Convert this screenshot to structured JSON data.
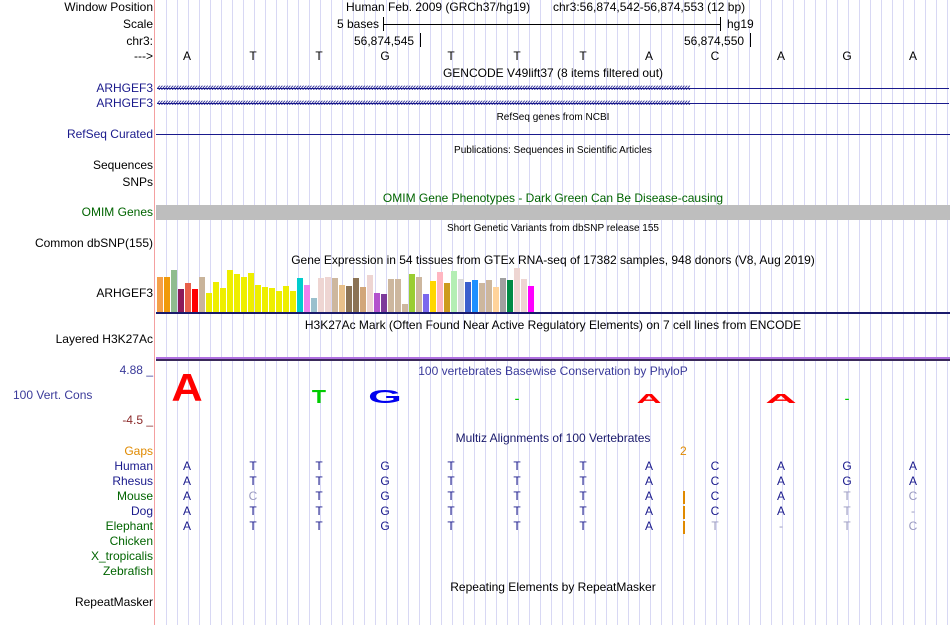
{
  "header": {
    "window_position_label": "Window Position",
    "scale_label": "Scale",
    "chrom_label": "chr3:",
    "strand_label": "--->",
    "assembly": "Human Feb. 2009 (GRCh37/hg19)",
    "position": "chr3:56,874,542-56,874,553 (12 bp)",
    "scale_text": "5 bases",
    "db": "hg19",
    "coord1": "56,874,545",
    "coord2": "56,874,550"
  },
  "sequence": [
    "A",
    "T",
    "T",
    "G",
    "T",
    "T",
    "T",
    "A",
    "C",
    "A",
    "G",
    "A"
  ],
  "tracks": {
    "gencode": {
      "title": "GENCODE V49lift37 (8 items filtered out)",
      "items": [
        "ARHGEF3",
        "ARHGEF3"
      ]
    },
    "refseq": {
      "title": "RefSeq genes from NCBI",
      "label": "RefSeq Curated"
    },
    "publications": {
      "title": "Publications: Sequences in Scientific Articles",
      "labels": [
        "Sequences",
        "SNPs"
      ]
    },
    "omim": {
      "title": "OMIM Gene Phenotypes - Dark Green Can Be Disease-causing",
      "label": "OMIM Genes"
    },
    "dbsnp": {
      "title": "Short Genetic Variants from dbSNP release 155",
      "label": "Common dbSNP(155)"
    },
    "gtex": {
      "title": "Gene Expression in 54 tissues from GTEx RNA-seq of 17382 samples, 948 donors (V8, Aug 2019)",
      "label": "ARHGEF3",
      "values": [
        35,
        35,
        42,
        23,
        29,
        23,
        35,
        19,
        30,
        24,
        42,
        38,
        35,
        39,
        27,
        25,
        24,
        21,
        26,
        21,
        34,
        27,
        14,
        34,
        35,
        34,
        27,
        26,
        34,
        25,
        37,
        19,
        18,
        33,
        33,
        8,
        38,
        35,
        18,
        31,
        40,
        29,
        41,
        33,
        30,
        32,
        29,
        32,
        25,
        34,
        32,
        44,
        33,
        26
      ],
      "colors": [
        "#f4a04a",
        "#f09a0a",
        "#8fbc8f",
        "#8b1a5a",
        "#e8604a",
        "#ff0000",
        "#c9b49a",
        "#eeee00",
        "#eeee00",
        "#eeee00",
        "#eeee00",
        "#eeee00",
        "#eeee00",
        "#eeee00",
        "#eeee00",
        "#eeee00",
        "#eeee00",
        "#eeee00",
        "#eeee00",
        "#eeee00",
        "#00cdcd",
        "#ee82ee",
        "#9bc0cd",
        "#eed5d2",
        "#eed5d2",
        "#cdb79e",
        "#e8c08a",
        "#8b7355",
        "#8b7355",
        "#d2a679",
        "#eed5d2",
        "#b452cd",
        "#7d3a9a",
        "#cdb79e",
        "#cdb79e",
        "#cdb79e",
        "#9acd32",
        "#cdb79e",
        "#7b68ee",
        "#ffd700",
        "#ffb6c1",
        "#cd9b1d",
        "#b4eeb4",
        "#d9d9d9",
        "#3a5fcd",
        "#1e90ff",
        "#cdb79e",
        "#cdb79e",
        "#ffd39b",
        "#a0a0a0",
        "#008b45",
        "#eed5d2",
        "#eed5d2",
        "#ff00ff"
      ]
    },
    "h3k27ac": {
      "title": "H3K27Ac Mark (Often Found Near Active Regulatory Elements) on 7 cell lines from ENCODE",
      "label": "Layered H3K27Ac"
    },
    "phylop": {
      "title": "100 vertebrates Basewise Conservation by PhyloP",
      "label": "100 Vert. Cons",
      "max": "4.88 _",
      "min": "-4.5 _"
    },
    "multiz": {
      "title": "Multiz Alignments of 100 Vertebrates",
      "gaps_label": "Gaps",
      "gap_count": "2",
      "species": [
        {
          "name": "Human",
          "bases": [
            "A",
            "T",
            "T",
            "G",
            "T",
            "T",
            "T",
            "A",
            "C",
            "A",
            "G",
            "A"
          ]
        },
        {
          "name": "Rhesus",
          "bases": [
            "A",
            "T",
            "T",
            "G",
            "T",
            "T",
            "T",
            "A",
            "C",
            "A",
            "G",
            "A"
          ]
        },
        {
          "name": "Mouse",
          "bases": [
            "A",
            "C",
            "T",
            "G",
            "T",
            "T",
            "T",
            "A",
            "C",
            "A",
            "T",
            "C"
          ]
        },
        {
          "name": "Dog",
          "bases": [
            "A",
            "T",
            "T",
            "G",
            "T",
            "T",
            "T",
            "A",
            "C",
            "A",
            "T",
            "-"
          ]
        },
        {
          "name": "Elephant",
          "bases": [
            "A",
            "T",
            "T",
            "G",
            "T",
            "T",
            "T",
            "A",
            "T",
            "-",
            "T",
            "C"
          ]
        },
        {
          "name": "Chicken",
          "bases": []
        },
        {
          "name": "X_tropicalis",
          "bases": []
        },
        {
          "name": "Zebrafish",
          "bases": []
        }
      ]
    },
    "repeatmasker": {
      "title": "Repeating Elements by RepeatMasker",
      "label": "RepeatMasker"
    }
  }
}
